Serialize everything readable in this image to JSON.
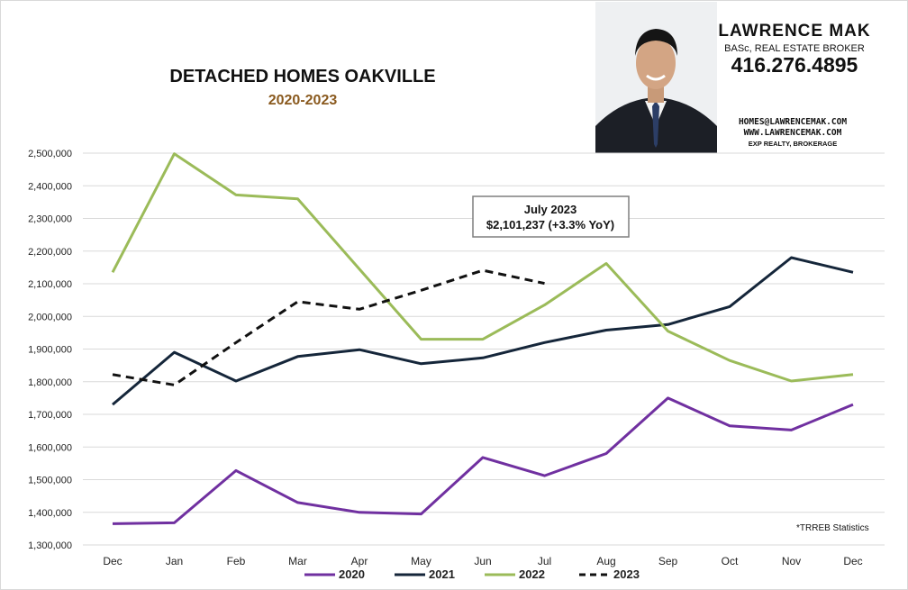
{
  "header": {
    "title": "DETACHED HOMES OAKVILLE",
    "subtitle": "2020-2023"
  },
  "branding": {
    "name": "LAWRENCE MAK",
    "credentials": "BASc, REAL ESTATE BROKER",
    "phone": "416.276.4895",
    "email": "HOMES@LAWRENCEMAK.COM",
    "website": "WWW.LAWRENCEMAK.COM",
    "brokerage": "EXP REALTY, BROKERAGE"
  },
  "annotation": {
    "line1": "July 2023",
    "line2": "$2,101,237  (+3.3%  YoY)"
  },
  "footnote": "*TRREB Statistics",
  "chart_data": {
    "type": "line",
    "title": "",
    "xlabel": "",
    "ylabel": "",
    "categories": [
      "Dec",
      "Jan",
      "Feb",
      "Mar",
      "Apr",
      "May",
      "Jun",
      "Jul",
      "Aug",
      "Sep",
      "Oct",
      "Nov",
      "Dec"
    ],
    "ylim": [
      1300000,
      2500000
    ],
    "yticks": [
      1300000,
      1400000,
      1500000,
      1600000,
      1700000,
      1800000,
      1900000,
      2000000,
      2100000,
      2200000,
      2300000,
      2400000,
      2500000
    ],
    "ytick_labels": [
      "1,300,000",
      "1,400,000",
      "1,500,000",
      "1,600,000",
      "1,700,000",
      "1,800,000",
      "1,900,000",
      "2,000,000",
      "2,100,000",
      "2,200,000",
      "2,300,000",
      "2,400,000",
      "2,500,000"
    ],
    "grid": true,
    "legend_position": "bottom",
    "series": [
      {
        "name": "2020",
        "color": "#7030a0",
        "dashed": false,
        "values": [
          1365000,
          1368000,
          1528000,
          1430000,
          1400000,
          1395000,
          1568000,
          1512000,
          1580000,
          1750000,
          1665000,
          1652000,
          1730000
        ]
      },
      {
        "name": "2021",
        "color": "#15263a",
        "dashed": false,
        "values": [
          1730000,
          1890000,
          1802000,
          1877000,
          1898000,
          1855000,
          1873000,
          1920000,
          1958000,
          1975000,
          2030000,
          2180000,
          2135000
        ]
      },
      {
        "name": "2022",
        "color": "#9bbb59",
        "dashed": false,
        "values": [
          2135000,
          2498000,
          2372000,
          2360000,
          2145000,
          1930000,
          1930000,
          2035000,
          2162000,
          1955000,
          1865000,
          1802000,
          1822000
        ]
      },
      {
        "name": "2023",
        "color": "#111111",
        "dashed": true,
        "values": [
          1822000,
          1790000,
          1920000,
          2045000,
          2022000,
          2080000,
          2141000,
          2101237,
          null,
          null,
          null,
          null,
          null
        ]
      }
    ]
  }
}
